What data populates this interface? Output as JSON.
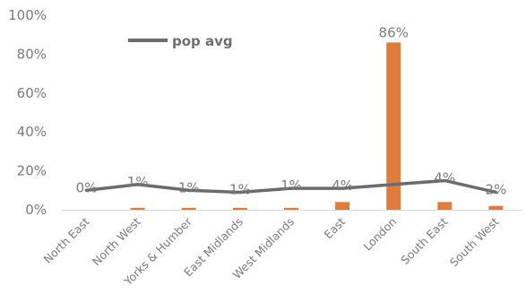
{
  "chart_data": {
    "type": "bar",
    "categories": [
      "North East",
      "North West",
      "Yorks & Humber",
      "East Midlands",
      "West Midlands",
      "East",
      "London",
      "South East",
      "South West"
    ],
    "series": [
      {
        "values": [
          0,
          1,
          1,
          1,
          1,
          4,
          86,
          4,
          2
        ],
        "labels": [
          "0%",
          "1%",
          "1%",
          "1%",
          "1%",
          "4%",
          "86%",
          "4%",
          "2%"
        ],
        "color": "#e07b39"
      },
      {
        "name": "pop avg",
        "type": "line",
        "values": [
          10,
          13,
          10,
          9,
          11,
          11,
          13,
          15,
          9
        ],
        "color": "#6b6b6b"
      }
    ],
    "ylim": [
      0,
      100
    ],
    "yticks": [
      0,
      20,
      40,
      60,
      80,
      100
    ],
    "ytick_labels": [
      "0%",
      "20%",
      "40%",
      "60%",
      "80%",
      "100%"
    ],
    "grid": false,
    "legend": "top-left"
  }
}
